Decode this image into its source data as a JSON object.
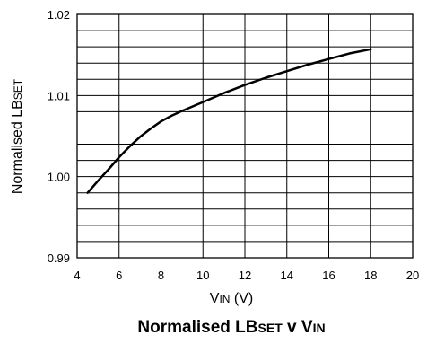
{
  "chart_data": {
    "type": "line",
    "title": {
      "main": "Normalised LB",
      "sub1": "SET",
      "mid": " v V",
      "sub2": "IN"
    },
    "xlabel": {
      "main": "V",
      "sub": "IN",
      "rest": " (V)"
    },
    "ylabel": {
      "main": "Normalised LB",
      "sub": "SET"
    },
    "xlim": [
      4,
      20
    ],
    "ylim": [
      0.99,
      1.02
    ],
    "x_ticks": [
      4,
      6,
      8,
      10,
      12,
      14,
      16,
      18,
      20
    ],
    "x_tick_labels": [
      "4",
      "6",
      "8",
      "10",
      "12",
      "14",
      "16",
      "18",
      "20"
    ],
    "y_ticks": [
      0.99,
      1.0,
      1.01,
      1.02
    ],
    "y_tick_labels": [
      "0.99",
      "1.00",
      "1.01",
      "1.02"
    ],
    "grid": true,
    "series": [
      {
        "x": [
          4.5,
          5.0,
          5.5,
          6.0,
          6.5,
          7.0,
          7.5,
          8.0,
          8.5,
          9.0,
          10.0,
          11.0,
          12.0,
          13.0,
          14.0,
          15.0,
          16.0,
          17.0,
          18.0
        ],
        "values": [
          0.998,
          0.9995,
          1.0009,
          1.0024,
          1.0037,
          1.0049,
          1.0059,
          1.0068,
          1.0075,
          1.0081,
          1.0092,
          1.0103,
          1.0113,
          1.0122,
          1.013,
          1.0138,
          1.0145,
          1.0152,
          1.0157
        ]
      }
    ]
  }
}
